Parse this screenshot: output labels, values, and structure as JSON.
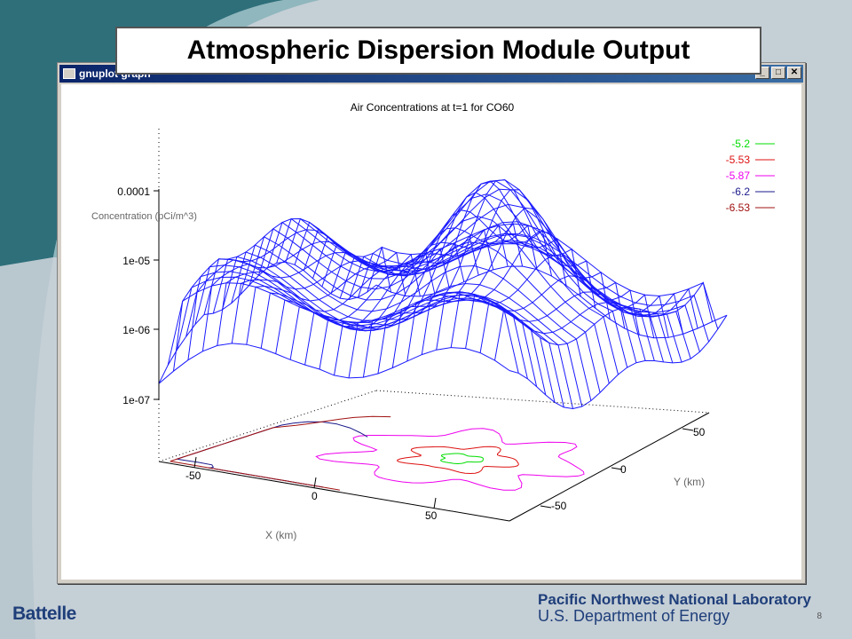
{
  "slide": {
    "title": "Atmospheric Dispersion Module Output",
    "footer_logo": "Battelle",
    "footer_lab_line1": "Pacific Northwest National Laboratory",
    "footer_lab_line2": "U.S. Department of Energy",
    "page_number": "8"
  },
  "window": {
    "title": "gnuplot graph",
    "min_glyph": "_",
    "max_glyph": "□",
    "close_glyph": "✕"
  },
  "colors": {
    "surface": "#1a1aff",
    "swoosh_dark": "#2e6f7a",
    "swoosh_light": "#8fb7bd",
    "legend": [
      "#00dd00",
      "#dd1111",
      "#ee00ee",
      "#1a1a8c",
      "#a01010"
    ]
  },
  "chart_data": {
    "type": "surface3d",
    "title": "Air Concentrations at t=1 for CO60",
    "zlabel": "Concentration (pCi/m^3)",
    "xlabel": "X (km)",
    "ylabel": "Y (km)",
    "z_scale": "log",
    "z_ticks": [
      "0.0001",
      "1e-05",
      "1e-06",
      "1e-07"
    ],
    "x_ticks": [
      "-50",
      "0",
      "50"
    ],
    "y_ticks": [
      "50",
      "0",
      "-50"
    ],
    "contour_levels": [
      {
        "label": "-5.2",
        "color": "#00dd00"
      },
      {
        "label": "-5.53",
        "color": "#dd1111"
      },
      {
        "label": "-5.87",
        "color": "#ee00ee"
      },
      {
        "label": "-6.2",
        "color": "#1a1a8c"
      },
      {
        "label": "-6.53",
        "color": "#a01010"
      }
    ],
    "legend_position": "top-right"
  }
}
